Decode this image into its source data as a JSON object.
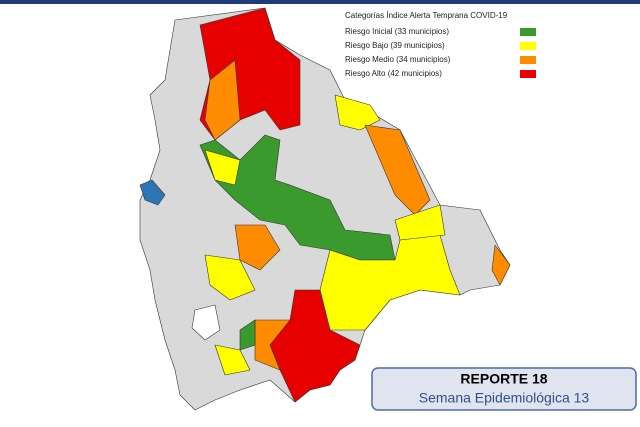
{
  "legend": {
    "title": "Categorías Índice Alerta Temprana COVID-19",
    "items": [
      {
        "label": "Riesgo Inicial (33 municipios)",
        "color": "#3a9a2e"
      },
      {
        "label": "Riesgo Bajo (39 municipios)",
        "color": "#ffff00"
      },
      {
        "label": "Riesgo Medio (34 municipios)",
        "color": "#ff8c00"
      },
      {
        "label": "Riesgo Alto (42 municipios)",
        "color": "#e60000"
      }
    ]
  },
  "report": {
    "title": "REPORTE 18",
    "subtitle": "Semana Epidemiológica 13"
  }
}
